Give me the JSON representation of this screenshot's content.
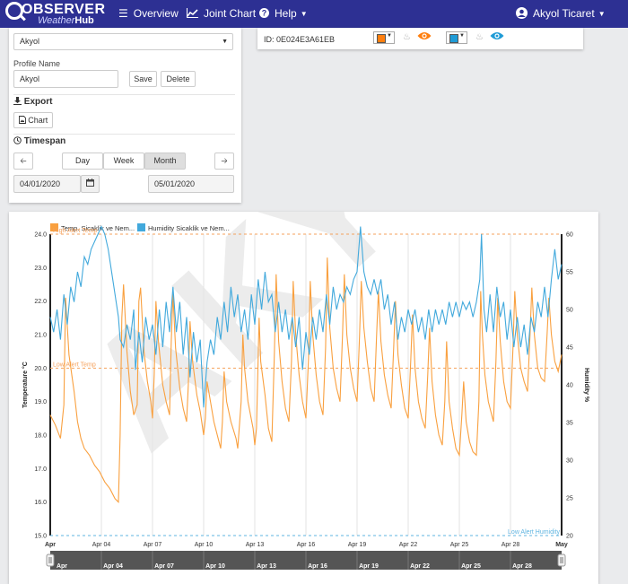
{
  "navbar": {
    "logo_observer": "OBSERVER",
    "logo_weather": "Weather",
    "logo_hub": "Hub",
    "items": [
      {
        "icon": "menu-icon",
        "label": "Overview"
      },
      {
        "icon": "line-chart-icon",
        "label": "Joint Chart"
      },
      {
        "icon": "help-icon",
        "label": "Help"
      }
    ],
    "user": "Akyol Ticaret",
    "color": "#2d3093"
  },
  "profile": {
    "selected": "Akyol",
    "name_label": "Profile Name",
    "name_value": "Akyol",
    "save_label": "Save",
    "delete_label": "Delete"
  },
  "export": {
    "title": "Export",
    "chart_label": "Chart"
  },
  "timespan": {
    "title": "Timespan",
    "buttons": [
      "Day",
      "Week",
      "Month"
    ],
    "active": "Month",
    "start_date": "04/01/2020",
    "end_date": "05/01/2020"
  },
  "device": {
    "id": "ID: 0E024E3A61EB",
    "temp_color": "#ff7f0e",
    "hum_color": "#1f9bd6"
  },
  "watermark": "AKYOL",
  "chart_data": {
    "type": "line",
    "series": [
      {
        "name": "Temp. Sicaklik ve Nem...",
        "color": "#f9a03f",
        "axis": "left"
      },
      {
        "name": "Humidity Sicaklik ve Nem...",
        "color": "#42a9dc",
        "axis": "right"
      }
    ],
    "ylabel_left": "Temperature °C",
    "ylabel_right": "Humidity %",
    "ylim_left": [
      15.0,
      24.0
    ],
    "ylim_right": [
      20,
      60
    ],
    "left_ticks": [
      "24.0",
      "23.0",
      "22.0",
      "21.0",
      "20.0",
      "19.0",
      "18.0",
      "17.0",
      "16.0",
      "15.0"
    ],
    "right_ticks": [
      "60",
      "55",
      "50",
      "45",
      "40",
      "35",
      "30",
      "25",
      "20"
    ],
    "x_ticks": [
      "Apr",
      "Apr 04",
      "Apr 07",
      "Apr 10",
      "Apr 13",
      "Apr 16",
      "Apr 19",
      "Apr 22",
      "Apr 25",
      "Apr 28",
      "May"
    ],
    "x_range_days": [
      1,
      31
    ],
    "navigator_ticks": [
      "Apr",
      "Apr 04",
      "Apr 07",
      "Apr 10",
      "Apr 13",
      "Apr 16",
      "Apr 19",
      "Apr 22",
      "Apr 25",
      "Apr 28"
    ],
    "thresholds": [
      {
        "label": "High Alert Temp",
        "axis": "left",
        "value": 24.0,
        "color": "#f5a25d"
      },
      {
        "label": "Low Alert Temp",
        "axis": "left",
        "value": 20.0,
        "color": "#f5a25d"
      },
      {
        "label": "Low Alert Humidity",
        "axis": "right",
        "value": 20,
        "color": "#5fb4e0"
      }
    ],
    "temp_points": [
      [
        1.0,
        18.6
      ],
      [
        1.3,
        18.3
      ],
      [
        1.6,
        17.9
      ],
      [
        1.8,
        18.9
      ],
      [
        1.9,
        22.1
      ],
      [
        2.1,
        20.4
      ],
      [
        2.4,
        19.3
      ],
      [
        2.6,
        18.4
      ],
      [
        2.8,
        17.9
      ],
      [
        3.0,
        17.6
      ],
      [
        3.3,
        17.4
      ],
      [
        3.6,
        17.1
      ],
      [
        3.9,
        16.9
      ],
      [
        4.2,
        16.6
      ],
      [
        4.5,
        16.4
      ],
      [
        4.8,
        16.1
      ],
      [
        5.0,
        16.0
      ],
      [
        5.1,
        18.0
      ],
      [
        5.2,
        21.5
      ],
      [
        5.3,
        22.5
      ],
      [
        5.5,
        20.5
      ],
      [
        5.7,
        19.3
      ],
      [
        5.9,
        18.6
      ],
      [
        6.1,
        18.9
      ],
      [
        6.2,
        22.0
      ],
      [
        6.3,
        22.4
      ],
      [
        6.5,
        20.5
      ],
      [
        6.7,
        19.6
      ],
      [
        6.9,
        19.0
      ],
      [
        7.0,
        18.5
      ],
      [
        7.1,
        19.8
      ],
      [
        7.2,
        22.0
      ],
      [
        7.35,
        20.8
      ],
      [
        7.6,
        19.5
      ],
      [
        7.8,
        19.0
      ],
      [
        8.0,
        18.6
      ],
      [
        8.1,
        20.8
      ],
      [
        8.2,
        22.2
      ],
      [
        8.35,
        20.6
      ],
      [
        8.6,
        19.4
      ],
      [
        8.8,
        18.8
      ],
      [
        9.0,
        18.4
      ],
      [
        9.1,
        19.5
      ],
      [
        9.2,
        21.4
      ],
      [
        9.35,
        20.2
      ],
      [
        9.6,
        19.2
      ],
      [
        9.8,
        18.7
      ],
      [
        10.0,
        18.0
      ],
      [
        10.1,
        18.5
      ],
      [
        10.2,
        19.6
      ],
      [
        10.4,
        19.0
      ],
      [
        10.6,
        18.4
      ],
      [
        10.8,
        18.0
      ],
      [
        11.0,
        17.6
      ],
      [
        11.1,
        18.4
      ],
      [
        11.2,
        19.9
      ],
      [
        11.35,
        19.0
      ],
      [
        11.6,
        18.4
      ],
      [
        11.9,
        17.9
      ],
      [
        12.0,
        17.6
      ],
      [
        12.2,
        19.0
      ],
      [
        12.3,
        21.0
      ],
      [
        12.4,
        20.0
      ],
      [
        12.6,
        19.0
      ],
      [
        12.9,
        18.2
      ],
      [
        13.0,
        17.7
      ],
      [
        13.1,
        18.2
      ],
      [
        13.25,
        21.5
      ],
      [
        13.35,
        20.2
      ],
      [
        13.6,
        19.2
      ],
      [
        13.8,
        18.2
      ],
      [
        14.0,
        17.8
      ],
      [
        14.15,
        20.5
      ],
      [
        14.25,
        22.8
      ],
      [
        14.4,
        20.8
      ],
      [
        14.6,
        19.6
      ],
      [
        14.8,
        18.8
      ],
      [
        15.0,
        18.4
      ],
      [
        15.15,
        20.2
      ],
      [
        15.25,
        22.6
      ],
      [
        15.4,
        21.0
      ],
      [
        15.6,
        19.8
      ],
      [
        15.8,
        19.0
      ],
      [
        16.0,
        18.5
      ],
      [
        16.15,
        20.3
      ],
      [
        16.25,
        22.6
      ],
      [
        16.4,
        21.0
      ],
      [
        16.6,
        19.8
      ],
      [
        16.8,
        19.0
      ],
      [
        17.0,
        18.6
      ],
      [
        17.15,
        20.6
      ],
      [
        17.25,
        23.3
      ],
      [
        17.4,
        21.2
      ],
      [
        17.6,
        20.0
      ],
      [
        17.8,
        19.4
      ],
      [
        18.0,
        19.0
      ],
      [
        18.15,
        21.0
      ],
      [
        18.25,
        22.8
      ],
      [
        18.4,
        21.0
      ],
      [
        18.6,
        20.0
      ],
      [
        18.8,
        19.4
      ],
      [
        19.0,
        19.0
      ],
      [
        19.15,
        21.0
      ],
      [
        19.25,
        22.6
      ],
      [
        19.4,
        21.2
      ],
      [
        19.6,
        20.2
      ],
      [
        19.8,
        19.4
      ],
      [
        20.0,
        19.0
      ],
      [
        20.15,
        21.0
      ],
      [
        20.25,
        22.3
      ],
      [
        20.4,
        20.8
      ],
      [
        20.6,
        19.8
      ],
      [
        20.8,
        19.2
      ],
      [
        21.0,
        18.8
      ],
      [
        21.15,
        20.6
      ],
      [
        21.25,
        22.0
      ],
      [
        21.4,
        20.4
      ],
      [
        21.6,
        19.5
      ],
      [
        21.8,
        18.8
      ],
      [
        22.0,
        18.5
      ],
      [
        22.15,
        20.2
      ],
      [
        22.25,
        21.6
      ],
      [
        22.4,
        20.0
      ],
      [
        22.6,
        19.0
      ],
      [
        22.8,
        18.5
      ],
      [
        23.0,
        18.2
      ],
      [
        23.15,
        19.8
      ],
      [
        23.25,
        21.2
      ],
      [
        23.4,
        19.6
      ],
      [
        23.6,
        18.6
      ],
      [
        23.8,
        18.0
      ],
      [
        24.0,
        17.7
      ],
      [
        24.15,
        19.0
      ],
      [
        24.25,
        20.8
      ],
      [
        24.4,
        19.0
      ],
      [
        24.6,
        18.2
      ],
      [
        24.8,
        17.6
      ],
      [
        25.0,
        17.4
      ],
      [
        25.15,
        18.6
      ],
      [
        25.25,
        19.6
      ],
      [
        25.4,
        18.4
      ],
      [
        25.6,
        17.8
      ],
      [
        25.8,
        17.5
      ],
      [
        26.0,
        17.4
      ],
      [
        26.15,
        19.0
      ],
      [
        26.25,
        22.3
      ],
      [
        26.35,
        21.0
      ],
      [
        26.5,
        19.8
      ],
      [
        26.7,
        19.0
      ],
      [
        26.9,
        18.6
      ],
      [
        27.0,
        18.4
      ],
      [
        27.15,
        20.2
      ],
      [
        27.25,
        22.1
      ],
      [
        27.4,
        20.8
      ],
      [
        27.6,
        19.6
      ],
      [
        27.8,
        19.0
      ],
      [
        28.0,
        18.8
      ],
      [
        28.15,
        20.6
      ],
      [
        28.25,
        22.3
      ],
      [
        28.4,
        21.0
      ],
      [
        28.6,
        20.0
      ],
      [
        28.8,
        19.6
      ],
      [
        29.0,
        19.3
      ],
      [
        29.15,
        21.0
      ],
      [
        29.25,
        22.4
      ],
      [
        29.4,
        21.0
      ],
      [
        29.6,
        20.0
      ],
      [
        29.8,
        19.7
      ],
      [
        30.0,
        19.6
      ],
      [
        30.15,
        21.0
      ],
      [
        30.25,
        22.1
      ],
      [
        30.4,
        21.0
      ],
      [
        30.6,
        20.2
      ],
      [
        30.8,
        19.9
      ],
      [
        31.0,
        20.4
      ]
    ],
    "hum_points": [
      [
        1.0,
        49
      ],
      [
        1.2,
        47
      ],
      [
        1.4,
        50
      ],
      [
        1.6,
        46
      ],
      [
        1.8,
        52
      ],
      [
        2.0,
        48
      ],
      [
        2.2,
        53
      ],
      [
        2.4,
        51
      ],
      [
        2.6,
        55
      ],
      [
        2.8,
        53
      ],
      [
        3.0,
        57
      ],
      [
        3.2,
        56
      ],
      [
        3.4,
        58
      ],
      [
        3.6,
        59
      ],
      [
        3.8,
        60
      ],
      [
        4.0,
        61
      ],
      [
        4.2,
        60
      ],
      [
        4.4,
        58
      ],
      [
        4.6,
        55
      ],
      [
        4.8,
        52
      ],
      [
        5.0,
        49
      ],
      [
        5.1,
        46
      ],
      [
        5.3,
        45
      ],
      [
        5.5,
        48
      ],
      [
        5.7,
        46
      ],
      [
        5.9,
        50
      ],
      [
        6.0,
        42
      ],
      [
        6.2,
        47
      ],
      [
        6.4,
        43
      ],
      [
        6.6,
        49
      ],
      [
        6.8,
        46
      ],
      [
        7.0,
        48
      ],
      [
        7.2,
        44
      ],
      [
        7.4,
        50
      ],
      [
        7.6,
        45
      ],
      [
        7.8,
        51
      ],
      [
        8.0,
        47
      ],
      [
        8.2,
        53
      ],
      [
        8.4,
        47
      ],
      [
        8.6,
        51
      ],
      [
        8.8,
        44
      ],
      [
        9.0,
        49
      ],
      [
        9.2,
        41
      ],
      [
        9.4,
        47
      ],
      [
        9.6,
        43
      ],
      [
        9.8,
        46
      ],
      [
        10.0,
        37
      ],
      [
        10.2,
        43
      ],
      [
        10.4,
        46
      ],
      [
        10.6,
        44
      ],
      [
        10.8,
        49
      ],
      [
        11.0,
        46
      ],
      [
        11.2,
        51
      ],
      [
        11.4,
        47
      ],
      [
        11.6,
        53
      ],
      [
        11.8,
        49
      ],
      [
        12.0,
        52
      ],
      [
        12.2,
        47
      ],
      [
        12.4,
        50
      ],
      [
        12.6,
        46
      ],
      [
        12.8,
        52
      ],
      [
        13.0,
        48
      ],
      [
        13.2,
        54
      ],
      [
        13.4,
        50
      ],
      [
        13.6,
        55
      ],
      [
        13.8,
        51
      ],
      [
        14.0,
        52
      ],
      [
        14.2,
        47
      ],
      [
        14.4,
        51
      ],
      [
        14.6,
        47
      ],
      [
        14.8,
        50
      ],
      [
        15.0,
        46
      ],
      [
        15.2,
        49
      ],
      [
        15.4,
        45
      ],
      [
        15.6,
        49
      ],
      [
        15.8,
        42
      ],
      [
        16.0,
        47
      ],
      [
        16.2,
        44
      ],
      [
        16.4,
        49
      ],
      [
        16.6,
        46
      ],
      [
        16.8,
        50
      ],
      [
        17.0,
        47
      ],
      [
        17.2,
        52
      ],
      [
        17.4,
        48
      ],
      [
        17.6,
        53
      ],
      [
        17.8,
        50
      ],
      [
        18.0,
        52
      ],
      [
        18.2,
        51
      ],
      [
        18.4,
        53
      ],
      [
        18.6,
        52
      ],
      [
        18.8,
        54
      ],
      [
        19.0,
        55
      ],
      [
        19.2,
        61
      ],
      [
        19.4,
        55
      ],
      [
        19.6,
        53
      ],
      [
        19.8,
        52
      ],
      [
        20.0,
        54
      ],
      [
        20.2,
        52
      ],
      [
        20.4,
        54
      ],
      [
        20.6,
        50
      ],
      [
        20.8,
        52
      ],
      [
        21.0,
        48
      ],
      [
        21.2,
        51
      ],
      [
        21.4,
        46
      ],
      [
        21.6,
        49
      ],
      [
        21.8,
        47
      ],
      [
        22.0,
        50
      ],
      [
        22.2,
        48
      ],
      [
        22.4,
        50
      ],
      [
        22.6,
        47
      ],
      [
        22.8,
        49
      ],
      [
        23.0,
        46
      ],
      [
        23.2,
        50
      ],
      [
        23.4,
        47
      ],
      [
        23.6,
        50
      ],
      [
        23.8,
        48
      ],
      [
        24.0,
        50
      ],
      [
        24.2,
        48
      ],
      [
        24.4,
        51
      ],
      [
        24.6,
        49
      ],
      [
        24.8,
        51
      ],
      [
        25.0,
        49
      ],
      [
        25.2,
        51
      ],
      [
        25.4,
        50
      ],
      [
        25.6,
        51
      ],
      [
        25.8,
        49
      ],
      [
        26.0,
        51
      ],
      [
        26.2,
        54
      ],
      [
        26.3,
        60
      ],
      [
        26.45,
        50
      ],
      [
        26.6,
        47
      ],
      [
        26.8,
        52
      ],
      [
        27.0,
        47
      ],
      [
        27.2,
        53
      ],
      [
        27.4,
        49
      ],
      [
        27.6,
        51
      ],
      [
        27.8,
        46
      ],
      [
        28.0,
        50
      ],
      [
        28.2,
        45
      ],
      [
        28.4,
        49
      ],
      [
        28.6,
        45
      ],
      [
        28.8,
        48
      ],
      [
        29.0,
        44
      ],
      [
        29.2,
        49
      ],
      [
        29.4,
        47
      ],
      [
        29.6,
        51
      ],
      [
        29.8,
        49
      ],
      [
        30.0,
        53
      ],
      [
        30.2,
        49
      ],
      [
        30.4,
        54
      ],
      [
        30.6,
        58
      ],
      [
        30.8,
        54
      ],
      [
        31.0,
        56
      ]
    ]
  }
}
